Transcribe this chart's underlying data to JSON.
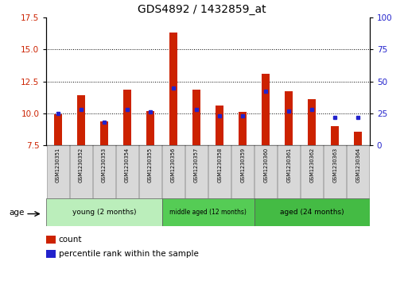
{
  "title": "GDS4892 / 1432859_at",
  "samples": [
    "GSM1230351",
    "GSM1230352",
    "GSM1230353",
    "GSM1230354",
    "GSM1230355",
    "GSM1230356",
    "GSM1230357",
    "GSM1230358",
    "GSM1230359",
    "GSM1230360",
    "GSM1230361",
    "GSM1230362",
    "GSM1230363",
    "GSM1230364"
  ],
  "count_values": [
    9.95,
    11.4,
    9.35,
    11.85,
    10.2,
    16.3,
    11.85,
    10.6,
    10.1,
    13.1,
    11.7,
    11.1,
    9.0,
    8.55
  ],
  "percentile_values": [
    25,
    28,
    18,
    28,
    26,
    45,
    28,
    23,
    23,
    42,
    27,
    28,
    22,
    22
  ],
  "groups": [
    {
      "label": "young (2 months)",
      "start": 0,
      "end": 5
    },
    {
      "label": "middle aged (12 months)",
      "start": 5,
      "end": 9
    },
    {
      "label": "aged (24 months)",
      "start": 9,
      "end": 14
    }
  ],
  "group_colors": [
    "#BBEEBB",
    "#55CC55",
    "#44BB44"
  ],
  "ylim_left": [
    7.5,
    17.5
  ],
  "ylim_right": [
    0,
    100
  ],
  "yticks_left": [
    7.5,
    10.0,
    12.5,
    15.0,
    17.5
  ],
  "yticks_right": [
    0,
    25,
    50,
    75,
    100
  ],
  "bar_color": "#CC2200",
  "percentile_color": "#2222CC",
  "bar_width": 0.35,
  "base_value": 7.5,
  "legend_count_label": "count",
  "legend_percentile_label": "percentile rank within the sample",
  "age_label": "age"
}
